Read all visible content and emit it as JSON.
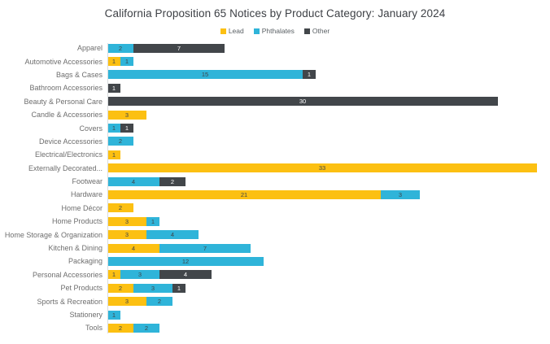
{
  "chart_data": {
    "type": "bar",
    "orientation": "horizontal",
    "stacked": true,
    "title": "California Proposition 65 Notices by Product Category: January 2024",
    "legend_position": "top-center",
    "value_labels": "inside",
    "grid": false,
    "xlim": [
      0,
      33
    ],
    "categories": [
      "Apparel",
      "Automotive Accessories",
      "Bags & Cases",
      "Bathroom Accessories",
      "Beauty & Personal Care",
      "Candle & Accessories",
      "Covers",
      "Device Accessories",
      "Electrical/Electronics",
      "Externally Decorated...",
      "Footwear",
      "Hardware",
      "Home Décor",
      "Home Products",
      "Home Storage & Organization",
      "Kitchen & Dining",
      "Packaging",
      "Personal Accessories",
      "Pet Products",
      "Sports & Recreation",
      "Stationery",
      "Tools"
    ],
    "series": [
      {
        "name": "Lead",
        "color": "#FCC012",
        "label_color": "#3F4448",
        "values": [
          0,
          1,
          0,
          0,
          0,
          3,
          0,
          0,
          1,
          33,
          0,
          21,
          2,
          3,
          3,
          4,
          0,
          1,
          2,
          3,
          0,
          2
        ]
      },
      {
        "name": "Phthalates",
        "color": "#2FB4D9",
        "label_color": "#3F4448",
        "values": [
          2,
          1,
          15,
          0,
          0,
          0,
          1,
          2,
          0,
          0,
          4,
          3,
          0,
          1,
          4,
          7,
          12,
          3,
          3,
          2,
          1,
          2
        ]
      },
      {
        "name": "Other",
        "color": "#42464A",
        "label_color": "#FFFFFF",
        "values": [
          7,
          0,
          1,
          1,
          30,
          0,
          1,
          0,
          0,
          0,
          2,
          0,
          0,
          0,
          0,
          0,
          0,
          4,
          1,
          0,
          0,
          0
        ]
      }
    ]
  },
  "colors": {
    "background": "#FFFFFF",
    "title_text": "#3D4045",
    "category_text": "#6E6E6E",
    "axis_line": "#D9DCDE"
  }
}
